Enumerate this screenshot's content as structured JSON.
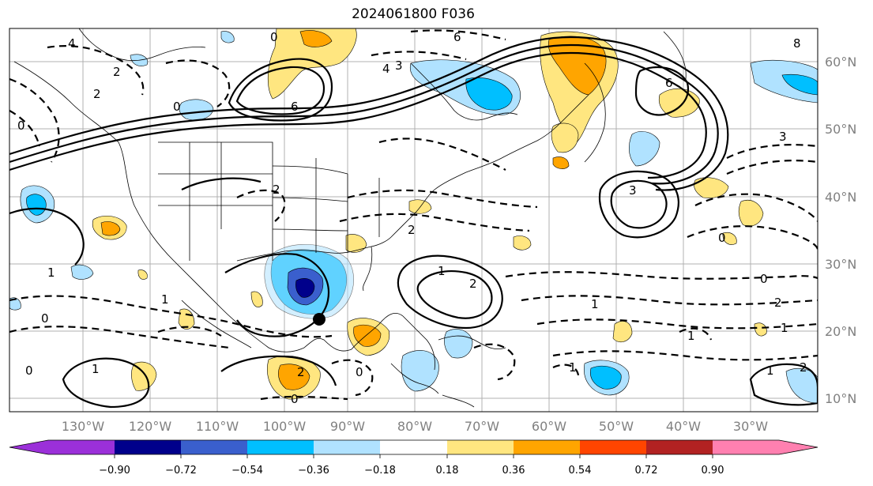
{
  "title": "2024061800 F036",
  "lon_labels": [
    "130°W",
    "120°W",
    "110°W",
    "100°W",
    "90°W",
    "80°W",
    "70°W",
    "60°W",
    "50°W",
    "40°W",
    "30°W"
  ],
  "lat_labels": [
    "60°N",
    "50°N",
    "40°N",
    "30°N",
    "20°N",
    "10°N"
  ],
  "colorbar": {
    "ticks": [
      "−0.90",
      "−0.72",
      "−0.54",
      "−0.36",
      "−0.18",
      "0.18",
      "0.36",
      "0.54",
      "0.72",
      "0.90"
    ],
    "colors": [
      "#9b30d9",
      "#00008b",
      "#3a5fcd",
      "#00bfff",
      "#b0e2ff",
      "#ffffff",
      "#ffe680",
      "#ffa500",
      "#ff4500",
      "#b22222",
      "#ff80b0"
    ]
  },
  "contour_labels": [
    "0",
    "4",
    "2",
    "6",
    "8",
    "0",
    "6",
    "4",
    "3",
    "2",
    "0",
    "1",
    "2",
    "6",
    "3",
    "3",
    "0",
    "2",
    "1",
    "2",
    "0",
    "1",
    "1",
    "0",
    "2",
    "1",
    "0",
    "1",
    "2",
    "0",
    "1",
    "0",
    "2",
    "1",
    "1"
  ],
  "marker": "black-dot"
}
